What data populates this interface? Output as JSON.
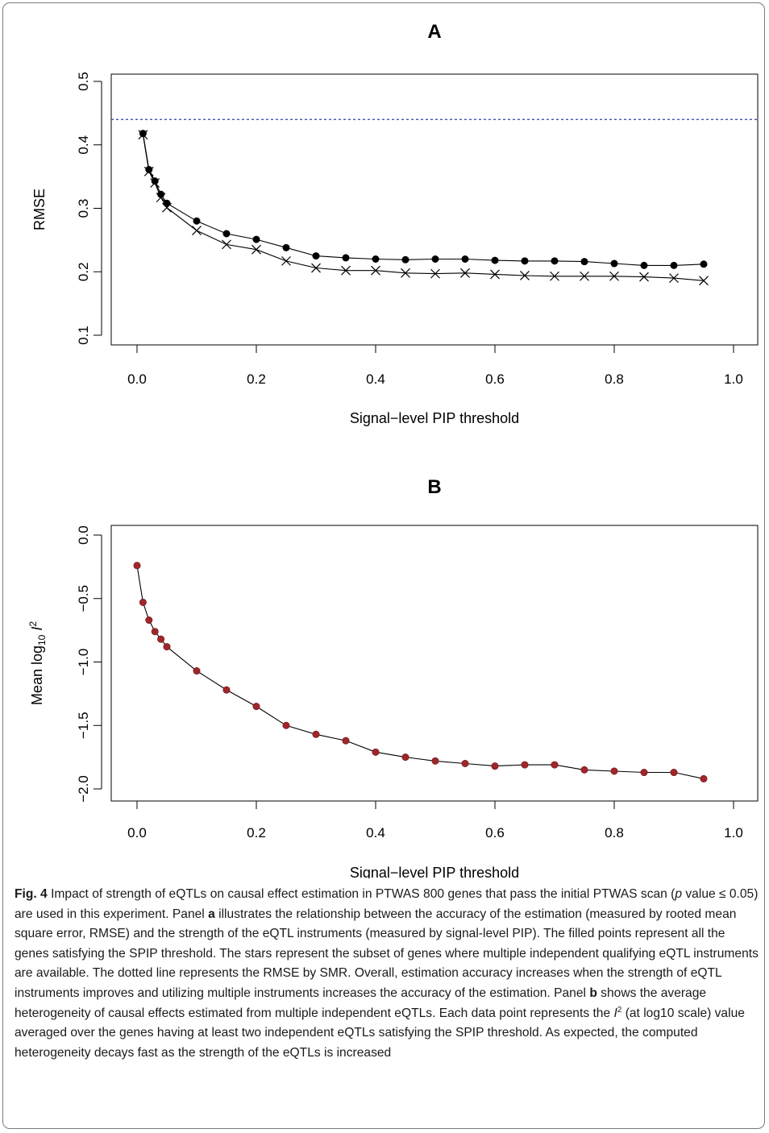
{
  "chart_data": [
    {
      "panel": "A",
      "type": "line",
      "title": "A",
      "xlabel": "Signal−level PIP threshold",
      "ylabel": "RMSE",
      "xlim": [
        0.0,
        1.0
      ],
      "ylim": [
        0.1,
        0.5
      ],
      "xticks": [
        "0.0",
        "0.2",
        "0.4",
        "0.6",
        "0.8",
        "1.0"
      ],
      "yticks": [
        "0.1",
        "0.2",
        "0.3",
        "0.4",
        "0.5"
      ],
      "grid": false,
      "legend": "none",
      "x": [
        0.01,
        0.02,
        0.03,
        0.04,
        0.05,
        0.1,
        0.15,
        0.2,
        0.25,
        0.3,
        0.35,
        0.4,
        0.45,
        0.5,
        0.55,
        0.6,
        0.65,
        0.7,
        0.75,
        0.8,
        0.85,
        0.9,
        0.95
      ],
      "series": [
        {
          "marker": "filled-circle",
          "values": [
            0.418,
            0.361,
            0.343,
            0.322,
            0.308,
            0.28,
            0.26,
            0.251,
            0.238,
            0.225,
            0.222,
            0.22,
            0.219,
            0.22,
            0.22,
            0.218,
            0.217,
            0.217,
            0.216,
            0.213,
            0.21,
            0.21,
            0.212
          ]
        },
        {
          "marker": "cross",
          "values": [
            0.416,
            0.358,
            0.34,
            0.317,
            0.301,
            0.265,
            0.243,
            0.235,
            0.217,
            0.206,
            0.202,
            0.202,
            0.198,
            0.197,
            0.198,
            0.196,
            0.194,
            0.193,
            0.193,
            0.193,
            0.192,
            0.19,
            0.186
          ]
        }
      ],
      "reference_line": {
        "y": 0.44,
        "style": "dotted",
        "color": "#2f3fb0"
      }
    },
    {
      "panel": "B",
      "type": "line",
      "title": "B",
      "xlabel": "Signal−level PIP threshold",
      "ylabel": "Mean log10 I2",
      "ylabel_parts": {
        "pre": "Mean log",
        "sub": "10",
        "var": "I",
        "sup": "2"
      },
      "xlim": [
        0.0,
        1.0
      ],
      "ylim": [
        -2.0,
        0.0
      ],
      "xticks": [
        "0.0",
        "0.2",
        "0.4",
        "0.6",
        "0.8",
        "1.0"
      ],
      "yticks": [
        "−2.0",
        "−1.5",
        "−1.0",
        "−0.5",
        "0.0"
      ],
      "grid": false,
      "legend": "none",
      "x": [
        0.0,
        0.01,
        0.02,
        0.03,
        0.04,
        0.05,
        0.1,
        0.15,
        0.2,
        0.25,
        0.3,
        0.35,
        0.4,
        0.45,
        0.5,
        0.55,
        0.6,
        0.65,
        0.7,
        0.75,
        0.8,
        0.85,
        0.9,
        0.95
      ],
      "series": [
        {
          "marker": "filled-circle",
          "color": "#a0262a",
          "values": [
            -0.24,
            -0.53,
            -0.67,
            -0.76,
            -0.82,
            -0.88,
            -1.07,
            -1.22,
            -1.35,
            -1.5,
            -1.57,
            -1.62,
            -1.71,
            -1.75,
            -1.78,
            -1.8,
            -1.82,
            -1.81,
            -1.81,
            -1.85,
            -1.86,
            -1.87,
            -1.87,
            -1.92
          ]
        }
      ]
    }
  ],
  "caption": {
    "label": "Fig. 4",
    "parts": [
      {
        "t": "Impact of strength of eQTLs on causal effect estimation in PTWAS 800 genes that pass the initial PTWAS scan ("
      },
      {
        "t": "p",
        "s": "i"
      },
      {
        "t": " value ≤ 0.05) are used in this experiment. Panel "
      },
      {
        "t": "a",
        "s": "b"
      },
      {
        "t": " illustrates the relationship between the accuracy of the estimation (measured by rooted mean square error, RMSE) and the strength of the eQTL instruments (measured by signal-level PIP). The filled points represent all the genes satisfying the SPIP threshold. The stars represent the subset of genes where multiple independent qualifying eQTL instruments are available. The dotted line represents the RMSE by SMR. Overall, estimation accuracy increases when the strength of eQTL instruments improves and utilizing multiple instruments increases the accuracy of the estimation. Panel "
      },
      {
        "t": "b",
        "s": "b"
      },
      {
        "t": " shows the average heterogeneity of causal effects estimated from multiple independent eQTLs. Each data point represents the "
      },
      {
        "t": "I",
        "s": "i"
      },
      {
        "t": "2",
        "s": "sup"
      },
      {
        "t": " (at log10 scale) value averaged over the genes having at least two independent eQTLs satisfying the SPIP threshold. As expected, the computed heterogeneity decays fast as the strength of the eQTLs is increased"
      }
    ]
  }
}
